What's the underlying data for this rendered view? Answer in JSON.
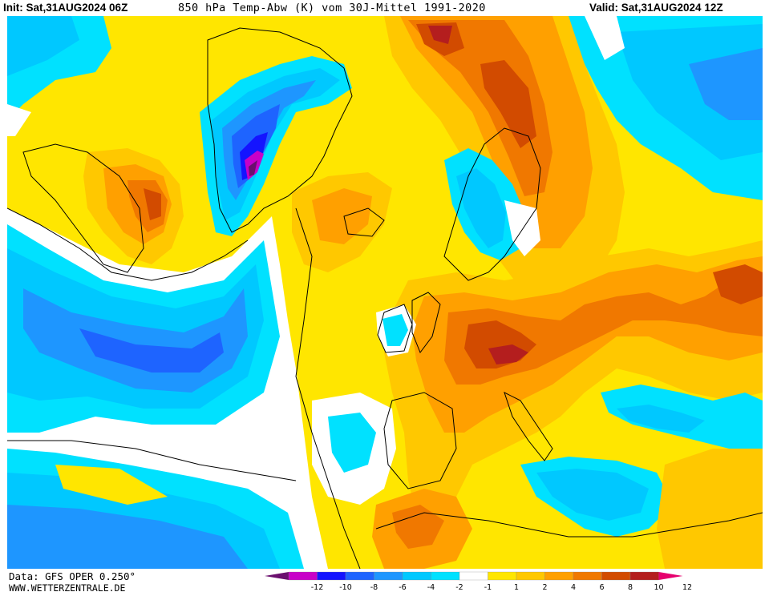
{
  "header": {
    "init": "Init: Sat,31AUG2024 06Z",
    "title": "850 hPa Temp-Abw (K) vom 30J-Mittel 1991-2020",
    "valid": "Valid: Sat,31AUG2024 12Z"
  },
  "footer": {
    "data_source": "Data: GFS OPER 0.250°",
    "website": "WWW.WETTERZENTRALE.DE"
  },
  "legend": {
    "ticks": [
      "-12",
      "-10",
      "-8",
      "-6",
      "-4",
      "-2",
      "-1",
      "1",
      "2",
      "4",
      "6",
      "8",
      "10",
      "12"
    ],
    "colors": [
      "#6a0f6e",
      "#c800c8",
      "#1414ff",
      "#1e64ff",
      "#1e96ff",
      "#00c8ff",
      "#00e1ff",
      "#ffffff",
      "#ffe600",
      "#ffc800",
      "#ffa000",
      "#f07800",
      "#d24b00",
      "#b41e1e",
      "#e6006e"
    ]
  },
  "map": {
    "colors": {
      "white": "#ffffff",
      "cyan_light": "#00e1ff",
      "cyan": "#00c8ff",
      "blue_light": "#1e96ff",
      "blue": "#1e64ff",
      "blue_dark": "#1414ff",
      "magenta": "#c800c8",
      "purple": "#6a0f6e",
      "yellow": "#ffe600",
      "yellow_dark": "#ffc800",
      "orange_light": "#ffa000",
      "orange": "#f07800",
      "orange_dark": "#d24b00",
      "red": "#b41e1e"
    }
  }
}
